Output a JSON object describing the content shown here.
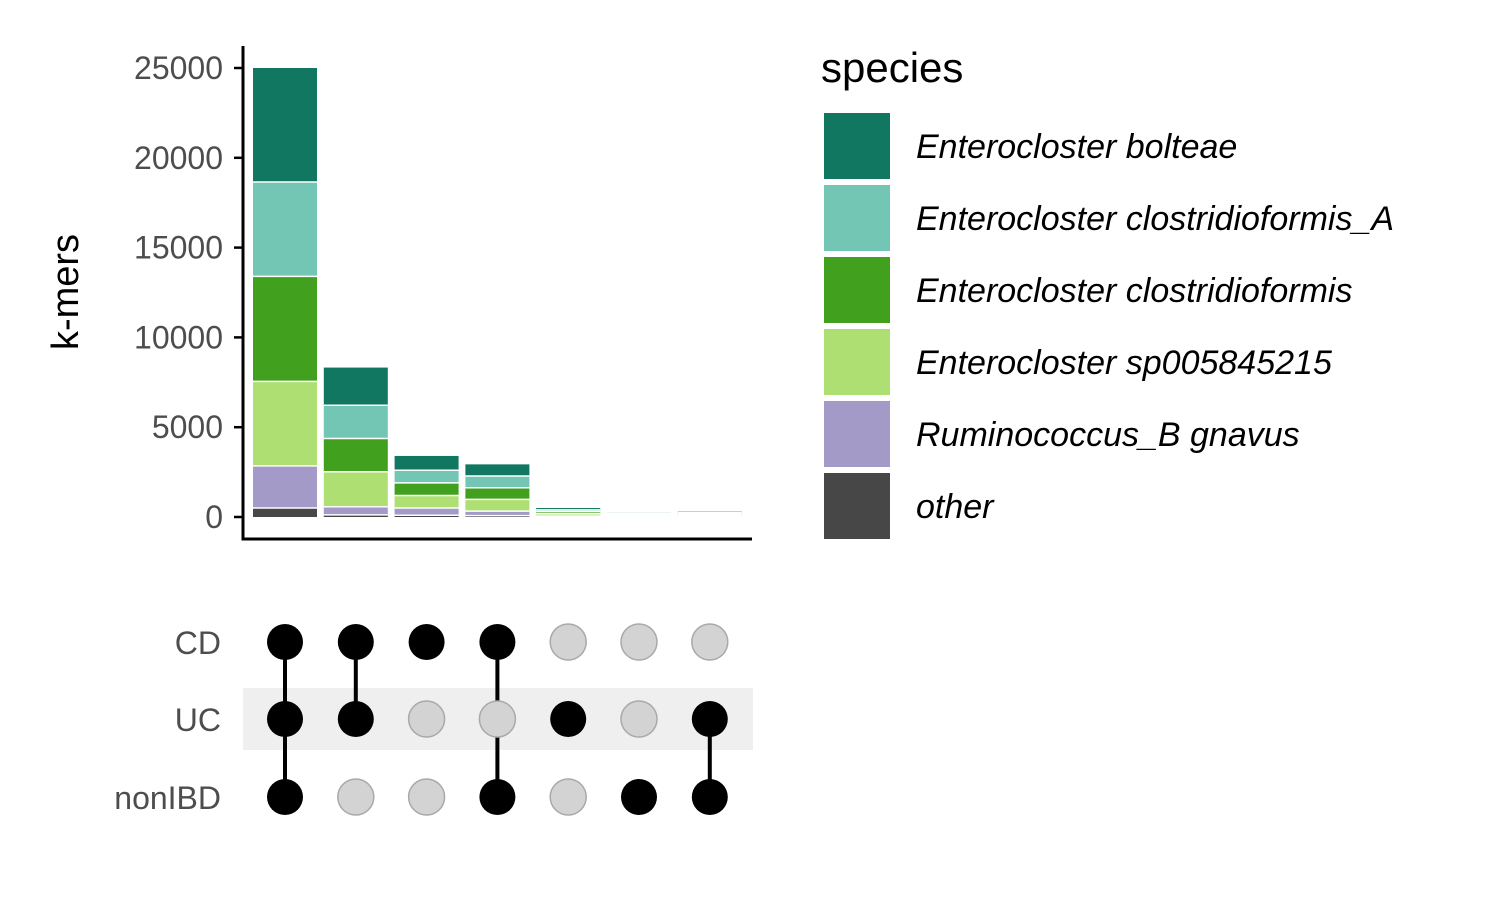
{
  "chart_data": {
    "type": "bar",
    "subtype": "upset-stacked",
    "ylabel": "k-mers",
    "ylim": [
      0,
      25000
    ],
    "yticks": [
      0,
      5000,
      10000,
      15000,
      20000,
      25000
    ],
    "sets": [
      "CD",
      "UC",
      "nonIBD"
    ],
    "intersections": [
      {
        "members": [
          "CD",
          "UC",
          "nonIBD"
        ]
      },
      {
        "members": [
          "CD",
          "UC"
        ]
      },
      {
        "members": [
          "CD"
        ]
      },
      {
        "members": [
          "CD",
          "nonIBD"
        ]
      },
      {
        "members": [
          "UC"
        ]
      },
      {
        "members": [
          "nonIBD"
        ]
      },
      {
        "members": [
          "UC",
          "nonIBD"
        ]
      }
    ],
    "series": [
      {
        "name": "other",
        "color": "#474747",
        "values": [
          500,
          120,
          100,
          80,
          20,
          15,
          15
        ]
      },
      {
        "name": "Ruminococcus_B gnavus",
        "color": "#a39ac8",
        "values": [
          2350,
          450,
          400,
          250,
          30,
          20,
          20
        ]
      },
      {
        "name": "Enterocloster sp005845215",
        "color": "#addf73",
        "values": [
          4700,
          1950,
          700,
          650,
          130,
          60,
          60
        ]
      },
      {
        "name": "Enterocloster clostridioformis",
        "color": "#41a11e",
        "values": [
          5850,
          1850,
          700,
          650,
          120,
          60,
          80
        ]
      },
      {
        "name": "Enterocloster clostridioformis_A",
        "color": "#73c6b3",
        "values": [
          5250,
          1850,
          700,
          650,
          100,
          45,
          70
        ]
      },
      {
        "name": "Enterocloster bolteae",
        "color": "#117760",
        "values": [
          6350,
          2100,
          800,
          650,
          100,
          40,
          55
        ]
      }
    ],
    "legend": {
      "title": "species",
      "position": "right",
      "items": [
        {
          "label": "Enterocloster bolteae",
          "color": "#117760"
        },
        {
          "label": "Enterocloster clostridioformis_A",
          "color": "#73c6b3"
        },
        {
          "label": "Enterocloster clostridioformis",
          "color": "#41a11e"
        },
        {
          "label": "Enterocloster sp005845215",
          "color": "#addf73"
        },
        {
          "label": "Ruminococcus_B gnavus",
          "color": "#a39ac8"
        },
        {
          "label": "other",
          "color": "#474747"
        }
      ]
    },
    "grid": false
  }
}
